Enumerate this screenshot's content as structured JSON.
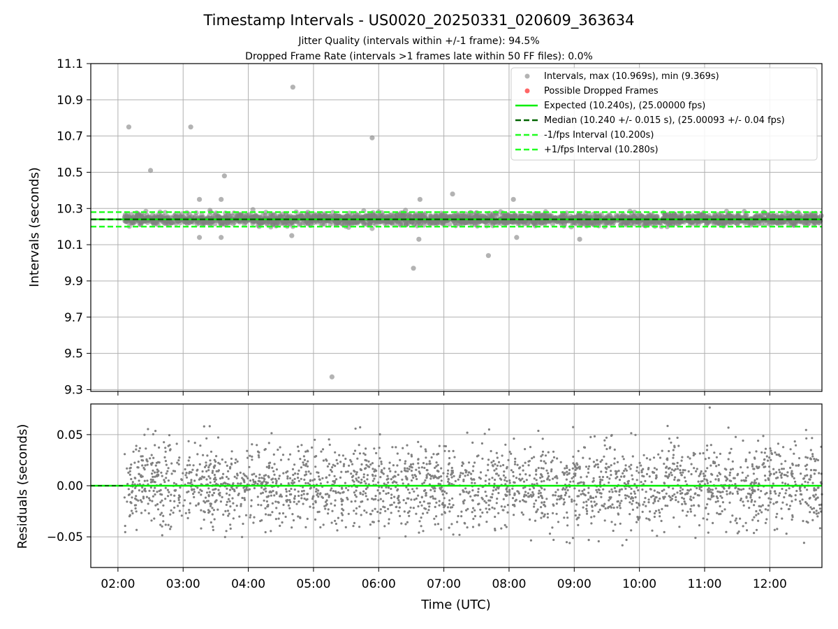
{
  "title": "Timestamp Intervals - US0020_20250331_020609_363634",
  "subtitle_1": "Jitter Quality (intervals within +/-1 frame): 94.5%",
  "subtitle_2": "Dropped Frame Rate (intervals >1 frames late within 50 FF files): 0.0%",
  "colors": {
    "intervals": "#808080",
    "dropped": "#ff0000",
    "expected": "#00ee00",
    "median": "#006400",
    "fps_interval": "#22ff22",
    "grid": "#b0b0b0"
  },
  "chart_data": [
    {
      "type": "scatter",
      "ylabel": "Intervals (seconds)",
      "ylim": [
        9.29,
        11.1
      ],
      "xlim": [
        "01:35",
        "12:48"
      ],
      "yticks": [
        "9.3",
        "9.5",
        "9.7",
        "9.9",
        "10.1",
        "10.3",
        "10.5",
        "10.7",
        "10.9",
        "11.1"
      ],
      "yticks_values": [
        9.3,
        9.5,
        9.7,
        9.9,
        10.1,
        10.3,
        10.5,
        10.7,
        10.9,
        11.1
      ],
      "grid": true,
      "legend_position": "top-right",
      "legend": [
        "Intervals, max (10.969s), min (9.369s)",
        "Possible Dropped Frames",
        "Expected (10.240s), (25.00000 fps)",
        "Median (10.240 +/- 0.015 s), (25.00093 +/- 0.04 fps)",
        "-1/fps Interval (10.200s)",
        "+1/fps Interval (10.280s)"
      ],
      "series": [
        {
          "name": "Intervals, max (10.969s), min (9.369s)",
          "x_range": [
            "02:06",
            "12:48"
          ],
          "center": 10.24,
          "spread": 0.015,
          "outliers": [
            {
              "x": "02:10",
              "y": 10.75
            },
            {
              "x": "02:30",
              "y": 10.51
            },
            {
              "x": "03:07",
              "y": 10.75
            },
            {
              "x": "03:38",
              "y": 10.48
            },
            {
              "x": "04:41",
              "y": 10.97
            },
            {
              "x": "05:54",
              "y": 10.69
            },
            {
              "x": "06:32",
              "y": 9.97
            },
            {
              "x": "07:41",
              "y": 10.04
            },
            {
              "x": "05:17",
              "y": 9.37
            },
            {
              "x": "07:08",
              "y": 10.38
            },
            {
              "x": "03:15",
              "y": 10.14
            },
            {
              "x": "03:35",
              "y": 10.14
            },
            {
              "x": "06:37",
              "y": 10.13
            },
            {
              "x": "09:05",
              "y": 10.13
            },
            {
              "x": "08:07",
              "y": 10.14
            },
            {
              "x": "04:40",
              "y": 10.15
            },
            {
              "x": "03:15",
              "y": 10.35
            },
            {
              "x": "03:35",
              "y": 10.35
            },
            {
              "x": "06:38",
              "y": 10.35
            },
            {
              "x": "08:04",
              "y": 10.35
            }
          ]
        },
        {
          "name": "Possible Dropped Frames",
          "points": []
        },
        {
          "name": "Expected (10.240s), (25.00000 fps)",
          "y": 10.24
        },
        {
          "name": "Median (10.240 +/- 0.015 s), (25.00093 +/- 0.04 fps)",
          "y": 10.24
        },
        {
          "name": "-1/fps Interval (10.200s)",
          "y": 10.2
        },
        {
          "name": "+1/fps Interval (10.280s)",
          "y": 10.28
        }
      ]
    },
    {
      "type": "scatter",
      "xlabel": "Time (UTC)",
      "ylabel": "Residuals (seconds)",
      "ylim": [
        -0.08,
        0.08
      ],
      "xlim": [
        "01:35",
        "12:48"
      ],
      "yticks": [
        "−0.05",
        "0.00",
        "0.05"
      ],
      "yticks_values": [
        -0.05,
        0.0,
        0.05
      ],
      "xticks": [
        "02:00",
        "03:00",
        "04:00",
        "05:00",
        "06:00",
        "07:00",
        "08:00",
        "09:00",
        "10:00",
        "11:00",
        "12:00"
      ],
      "grid": true,
      "series": [
        {
          "name": "Residuals",
          "x_range": [
            "02:06",
            "12:48"
          ],
          "center": 0.0,
          "spread": 0.02
        },
        {
          "name": "Expected",
          "y": 0.0
        }
      ]
    }
  ]
}
